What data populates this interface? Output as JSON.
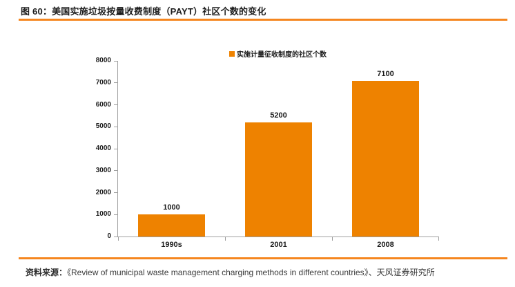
{
  "header": {
    "title": "图 60：美国实施垃圾按量收费制度（PAYT）社区个数的变化"
  },
  "footer": {
    "source_label": "资料来源：",
    "source_text": "《Review of municipal waste management charging methods in different countries》、天风证券研究所"
  },
  "colors": {
    "accent": "#F5861F",
    "bar": "#EE8200",
    "axis": "#9E9E9E",
    "text": "#1C1C1C"
  },
  "chart_data": {
    "type": "bar",
    "title": "",
    "xlabel": "",
    "ylabel": "",
    "categories": [
      "1990s",
      "2001",
      "2008"
    ],
    "values": [
      1000,
      5200,
      7100
    ],
    "data_labels": [
      "1000",
      "5200",
      "7100"
    ],
    "legend": {
      "label": "实施计量征收制度的社区个数",
      "position": "top",
      "marker_color": "#EE8200"
    },
    "ylim": [
      0,
      8000
    ],
    "yticks": [
      0,
      1000,
      2000,
      3000,
      4000,
      5000,
      6000,
      7000,
      8000
    ],
    "grid": false
  }
}
